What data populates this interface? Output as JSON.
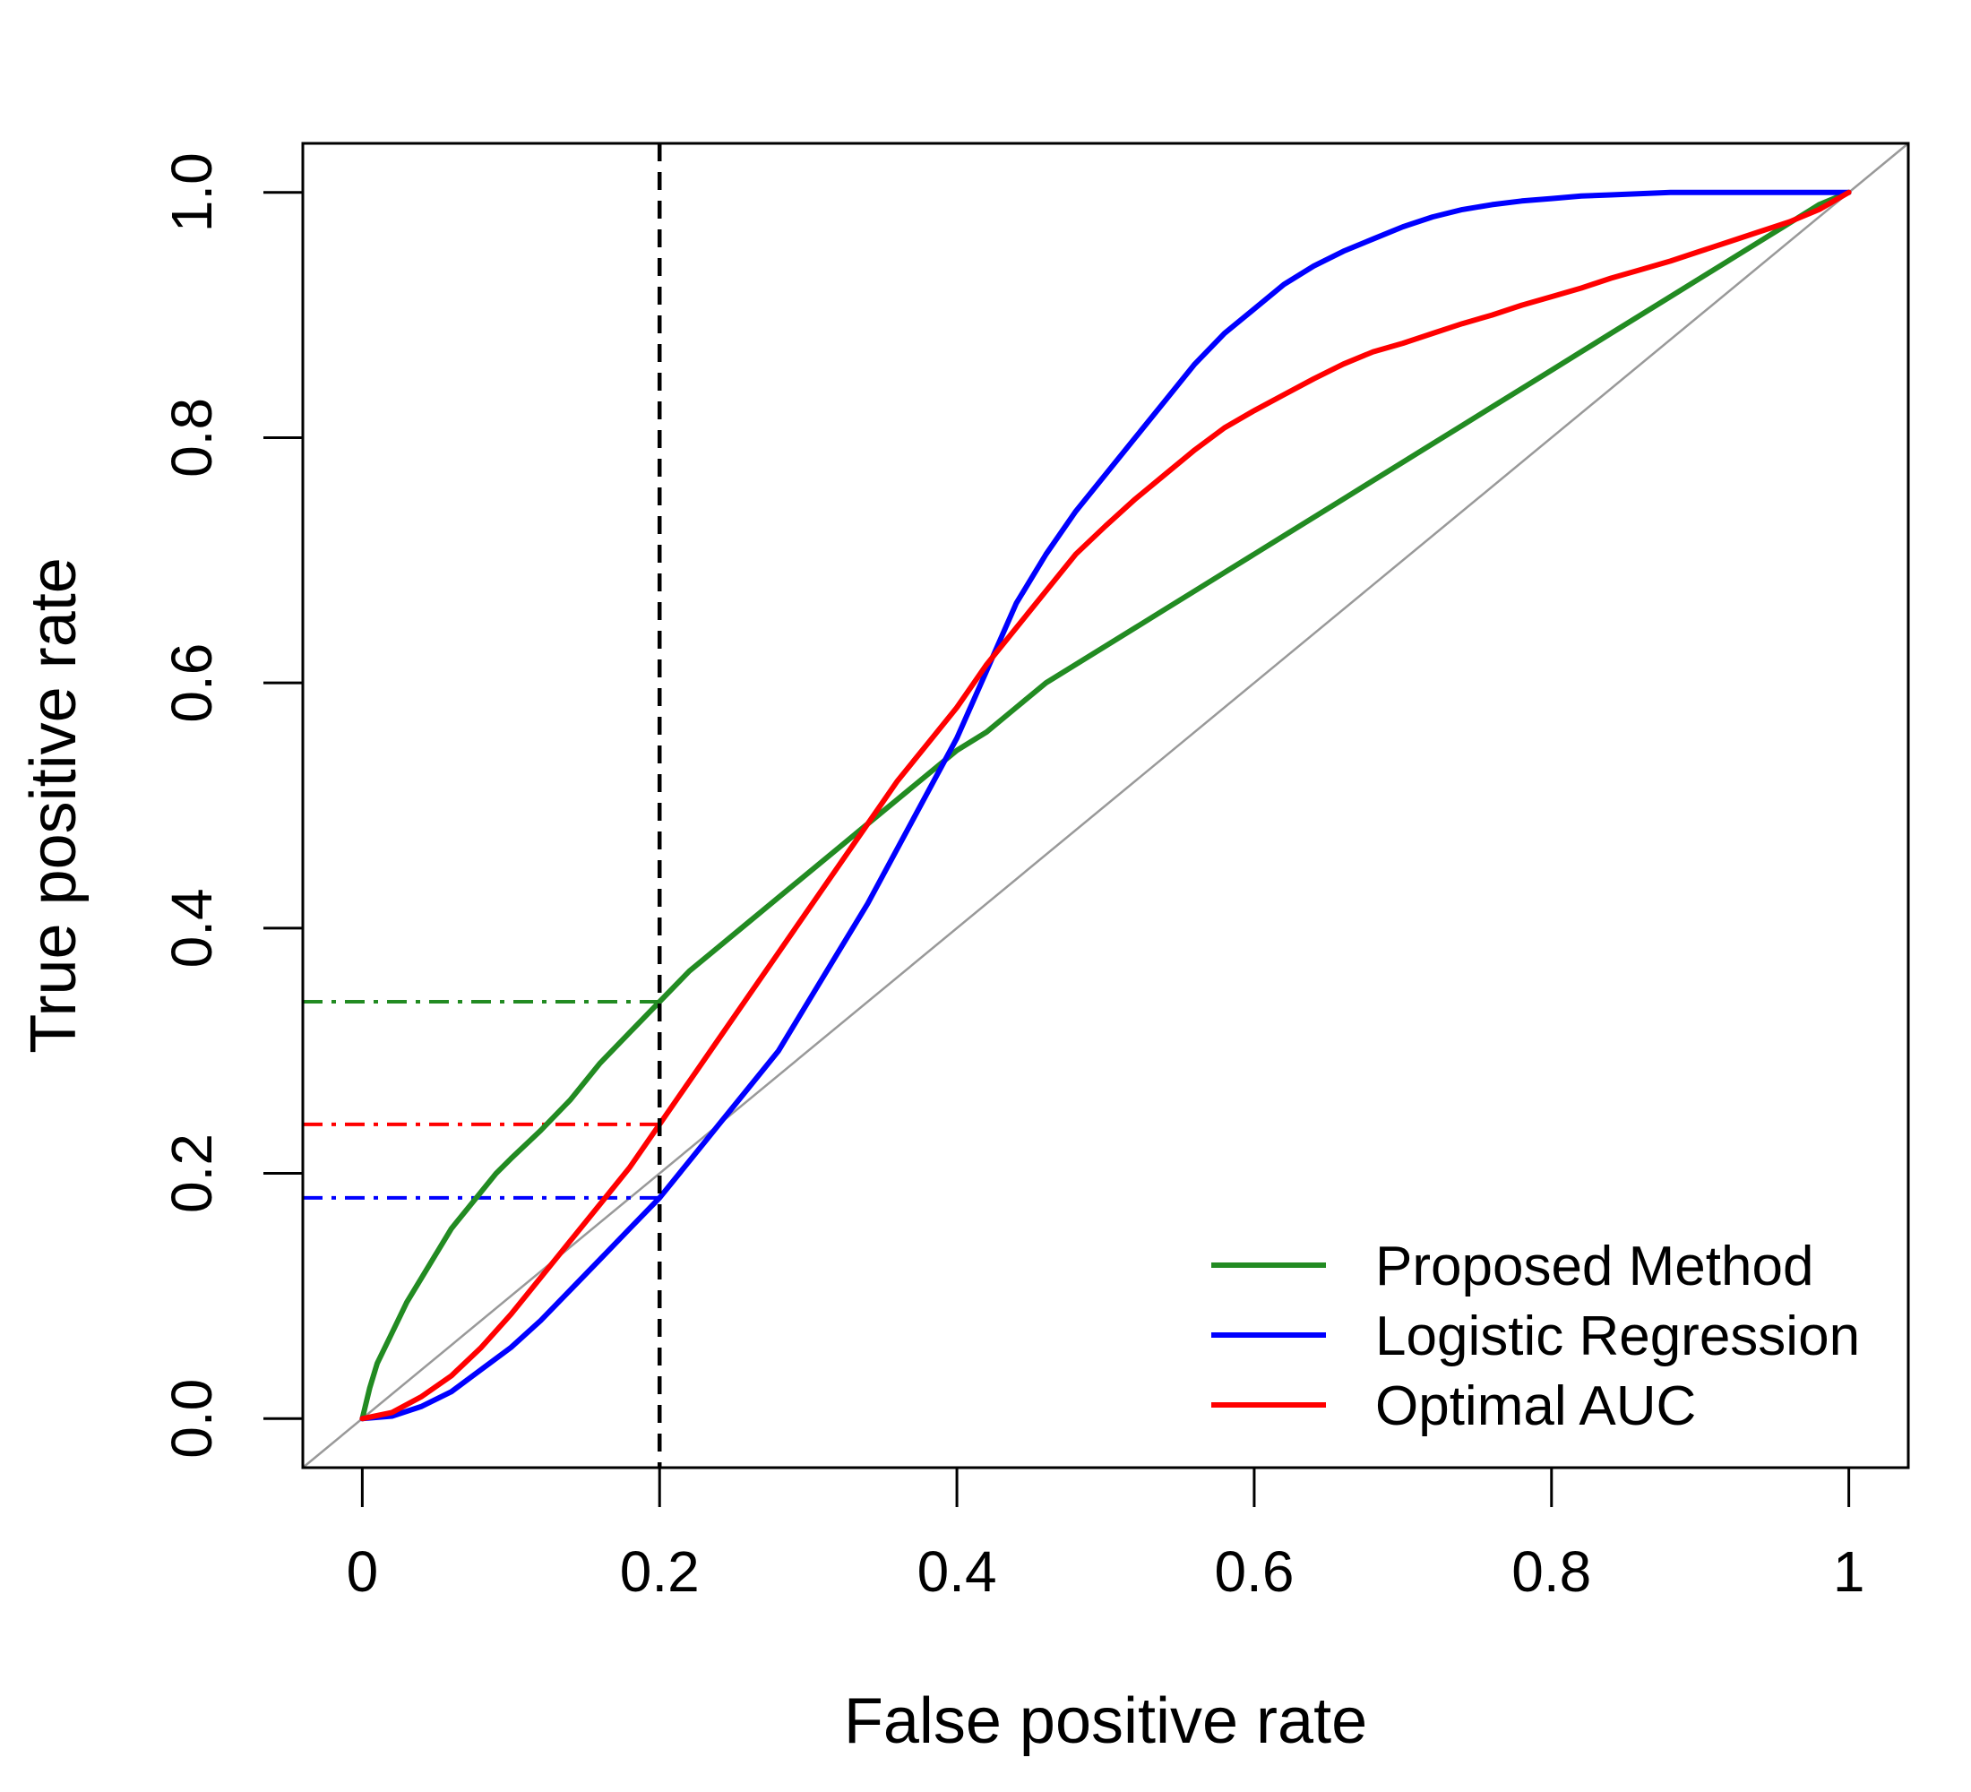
{
  "chart_data": {
    "type": "line",
    "title": "",
    "xlabel": "False positive rate",
    "ylabel": "True positive rate",
    "xlim": [
      -0.04,
      1.04
    ],
    "ylim": [
      -0.04,
      1.04
    ],
    "x_ticks": [
      0,
      0.2,
      0.4,
      0.6,
      0.8,
      1
    ],
    "x_tick_labels": [
      "0",
      "0.2",
      "0.4",
      "0.6",
      "0.8",
      "1"
    ],
    "y_ticks": [
      0,
      0.2,
      0.4,
      0.6,
      0.8,
      1.0
    ],
    "y_tick_labels": [
      "0.0",
      "0.2",
      "0.4",
      "0.6",
      "0.8",
      "1.0"
    ],
    "grid": false,
    "legend_position": "bottom-right",
    "series": [
      {
        "name": "Proposed Method",
        "color": "#228B22",
        "x": [
          0,
          0.005,
          0.01,
          0.02,
          0.03,
          0.04,
          0.05,
          0.06,
          0.07,
          0.08,
          0.09,
          0.1,
          0.12,
          0.14,
          0.16,
          0.18,
          0.2,
          0.22,
          0.24,
          0.26,
          0.28,
          0.3,
          0.32,
          0.34,
          0.36,
          0.38,
          0.4,
          0.42,
          0.44,
          0.46,
          0.48,
          0.5,
          0.52,
          0.54,
          0.56,
          0.58,
          0.6,
          0.62,
          0.64,
          0.66,
          0.68,
          0.7,
          0.72,
          0.74,
          0.76,
          0.78,
          0.8,
          0.82,
          0.84,
          0.86,
          0.88,
          0.9,
          0.92,
          0.94,
          0.96,
          0.98,
          1.0
        ],
        "y": [
          0,
          0.025,
          0.045,
          0.07,
          0.095,
          0.115,
          0.135,
          0.155,
          0.17,
          0.185,
          0.2,
          0.212,
          0.235,
          0.26,
          0.29,
          0.315,
          0.34,
          0.365,
          0.385,
          0.405,
          0.425,
          0.445,
          0.465,
          0.485,
          0.505,
          0.525,
          0.545,
          0.56,
          0.58,
          0.6,
          0.615,
          0.63,
          0.645,
          0.66,
          0.675,
          0.69,
          0.705,
          0.72,
          0.735,
          0.75,
          0.765,
          0.78,
          0.795,
          0.81,
          0.825,
          0.84,
          0.855,
          0.87,
          0.885,
          0.9,
          0.915,
          0.93,
          0.945,
          0.96,
          0.975,
          0.99,
          1.0
        ]
      },
      {
        "name": "Logistic Regression",
        "color": "#0000FF",
        "x": [
          0,
          0.02,
          0.04,
          0.06,
          0.08,
          0.1,
          0.12,
          0.14,
          0.16,
          0.18,
          0.2,
          0.22,
          0.24,
          0.26,
          0.28,
          0.3,
          0.32,
          0.34,
          0.36,
          0.38,
          0.4,
          0.42,
          0.44,
          0.46,
          0.48,
          0.5,
          0.52,
          0.54,
          0.56,
          0.58,
          0.6,
          0.62,
          0.64,
          0.66,
          0.68,
          0.7,
          0.72,
          0.74,
          0.76,
          0.78,
          0.8,
          0.82,
          0.84,
          0.86,
          0.88,
          0.9,
          0.95,
          1.0
        ],
        "y": [
          0,
          0.002,
          0.01,
          0.022,
          0.04,
          0.058,
          0.08,
          0.105,
          0.13,
          0.155,
          0.18,
          0.21,
          0.24,
          0.27,
          0.3,
          0.34,
          0.38,
          0.42,
          0.465,
          0.51,
          0.555,
          0.61,
          0.665,
          0.705,
          0.74,
          0.77,
          0.8,
          0.83,
          0.86,
          0.885,
          0.905,
          0.925,
          0.94,
          0.952,
          0.962,
          0.972,
          0.98,
          0.986,
          0.99,
          0.993,
          0.995,
          0.997,
          0.998,
          0.999,
          1.0,
          1.0,
          1.0,
          1.0
        ]
      },
      {
        "name": "Optimal AUC",
        "color": "#FF0000",
        "x": [
          0,
          0.02,
          0.04,
          0.06,
          0.08,
          0.1,
          0.12,
          0.14,
          0.16,
          0.18,
          0.2,
          0.22,
          0.24,
          0.26,
          0.28,
          0.3,
          0.32,
          0.34,
          0.36,
          0.38,
          0.4,
          0.42,
          0.44,
          0.46,
          0.48,
          0.5,
          0.52,
          0.54,
          0.56,
          0.58,
          0.6,
          0.62,
          0.64,
          0.66,
          0.68,
          0.7,
          0.72,
          0.74,
          0.76,
          0.78,
          0.8,
          0.82,
          0.84,
          0.86,
          0.88,
          0.9,
          0.92,
          0.94,
          0.96,
          0.98,
          1.0
        ],
        "y": [
          0,
          0.005,
          0.018,
          0.035,
          0.058,
          0.085,
          0.115,
          0.145,
          0.175,
          0.205,
          0.24,
          0.275,
          0.31,
          0.345,
          0.38,
          0.415,
          0.45,
          0.485,
          0.52,
          0.55,
          0.58,
          0.615,
          0.645,
          0.675,
          0.705,
          0.728,
          0.75,
          0.77,
          0.79,
          0.808,
          0.822,
          0.835,
          0.848,
          0.86,
          0.87,
          0.877,
          0.885,
          0.893,
          0.9,
          0.908,
          0.915,
          0.922,
          0.93,
          0.937,
          0.944,
          0.952,
          0.96,
          0.968,
          0.976,
          0.986,
          1.0
        ]
      }
    ],
    "reference_line": {
      "from": [
        0,
        0
      ],
      "to": [
        1,
        1
      ],
      "color": "#999999"
    },
    "threshold_line": {
      "x": 0.2,
      "color": "#000000",
      "style": "dashed"
    },
    "horizontal_markers": [
      {
        "series": "Proposed Method",
        "y": 0.34,
        "color": "#228B22",
        "style": "dash-dot"
      },
      {
        "series": "Optimal AUC",
        "y": 0.24,
        "color": "#FF0000",
        "style": "dash-dot"
      },
      {
        "series": "Logistic Regression",
        "y": 0.18,
        "color": "#0000FF",
        "style": "dash-dot"
      }
    ]
  }
}
